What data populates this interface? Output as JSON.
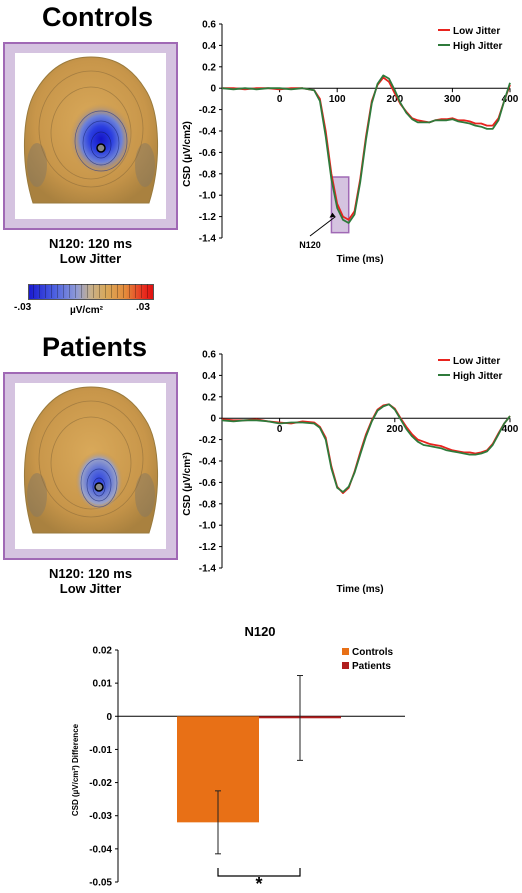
{
  "controls": {
    "heading": "Controls",
    "caption_line1": "N120: 120 ms",
    "caption_line2": "Low Jitter",
    "colorbar": {
      "min_label": "-.03",
      "max_label": ".03",
      "unit_label": "µV/cm²"
    },
    "annotation": "N120"
  },
  "patients": {
    "heading": "Patients",
    "caption_line1": "N120: 120 ms",
    "caption_line2": "Low Jitter"
  },
  "colors": {
    "low_jitter": "#e8231e",
    "high_jitter": "#2f7a3b",
    "controls_bar": "#e87016",
    "patients_bar": "#b01e1e",
    "frame": "#a069b5",
    "frame_fill": "#d5c3e0"
  },
  "chart_data": [
    {
      "type": "line",
      "xlabel": "Time (ms)",
      "ylabel": "CSD (µV/cm2)",
      "xlim": [
        -100,
        400
      ],
      "ylim": [
        -1.4,
        0.6
      ],
      "xticks": [
        0,
        100,
        200,
        300,
        400
      ],
      "yticks": [
        0.6,
        0.4,
        0.2,
        0,
        -0.2,
        -0.4,
        -0.6,
        -0.8,
        -1.0,
        -1.2,
        -1.4
      ],
      "legend_position": "top-right",
      "highlight_window": {
        "x": [
          90,
          120
        ],
        "y": [
          -1.35,
          -0.83
        ]
      },
      "series": [
        {
          "name": "Low Jitter",
          "x": [
            -100,
            -80,
            -60,
            -40,
            -20,
            0,
            20,
            40,
            60,
            70,
            80,
            90,
            100,
            110,
            120,
            130,
            140,
            150,
            160,
            170,
            180,
            190,
            200,
            210,
            220,
            230,
            240,
            250,
            260,
            270,
            280,
            290,
            300,
            310,
            320,
            330,
            340,
            350,
            360,
            370,
            380,
            390,
            400
          ],
          "y": [
            0,
            0,
            -0.01,
            0,
            0,
            -0.01,
            0,
            0,
            -0.02,
            -0.1,
            -0.4,
            -0.8,
            -1.08,
            -1.2,
            -1.23,
            -1.15,
            -0.85,
            -0.45,
            -0.12,
            0.03,
            0.1,
            0.06,
            -0.05,
            -0.15,
            -0.22,
            -0.28,
            -0.3,
            -0.31,
            -0.32,
            -0.3,
            -0.29,
            -0.29,
            -0.28,
            -0.3,
            -0.3,
            -0.31,
            -0.33,
            -0.33,
            -0.35,
            -0.35,
            -0.28,
            -0.12,
            0.03
          ]
        },
        {
          "name": "High Jitter",
          "x": [
            -100,
            -80,
            -60,
            -40,
            -20,
            0,
            20,
            40,
            60,
            70,
            80,
            90,
            100,
            110,
            120,
            130,
            140,
            150,
            160,
            170,
            180,
            190,
            200,
            210,
            220,
            230,
            240,
            250,
            260,
            270,
            280,
            290,
            300,
            310,
            320,
            330,
            340,
            350,
            360,
            370,
            380,
            390,
            400
          ],
          "y": [
            0,
            -0.01,
            0,
            -0.01,
            0,
            0,
            -0.01,
            0,
            -0.02,
            -0.12,
            -0.45,
            -0.85,
            -1.12,
            -1.23,
            -1.26,
            -1.18,
            -0.88,
            -0.48,
            -0.14,
            0.04,
            0.12,
            0.09,
            -0.02,
            -0.14,
            -0.23,
            -0.29,
            -0.32,
            -0.32,
            -0.32,
            -0.3,
            -0.3,
            -0.3,
            -0.29,
            -0.31,
            -0.32,
            -0.33,
            -0.35,
            -0.36,
            -0.38,
            -0.38,
            -0.3,
            -0.12,
            0.05
          ]
        }
      ]
    },
    {
      "type": "line",
      "xlabel": "Time (ms)",
      "ylabel": "CSD (µV/cm²)",
      "xlim": [
        -100,
        400
      ],
      "ylim": [
        -1.4,
        0.6
      ],
      "xticks": [
        0,
        200,
        400
      ],
      "yticks": [
        0.6,
        0.4,
        0.2,
        0,
        -0.2,
        -0.4,
        -0.6,
        -0.8,
        -1.0,
        -1.2,
        -1.4
      ],
      "legend_position": "top-right",
      "series": [
        {
          "name": "Low Jitter",
          "x": [
            -100,
            -80,
            -60,
            -40,
            -20,
            0,
            20,
            40,
            60,
            70,
            80,
            90,
            100,
            110,
            120,
            130,
            140,
            150,
            160,
            170,
            180,
            190,
            200,
            210,
            220,
            230,
            240,
            250,
            260,
            270,
            280,
            290,
            300,
            310,
            320,
            330,
            340,
            350,
            360,
            370,
            380,
            390,
            400
          ],
          "y": [
            -0.01,
            -0.02,
            -0.02,
            -0.01,
            -0.03,
            -0.04,
            -0.05,
            -0.03,
            -0.04,
            -0.08,
            -0.18,
            -0.45,
            -0.64,
            -0.7,
            -0.65,
            -0.5,
            -0.32,
            -0.15,
            -0.02,
            0.08,
            0.12,
            0.13,
            0.09,
            0,
            -0.08,
            -0.15,
            -0.2,
            -0.22,
            -0.24,
            -0.25,
            -0.26,
            -0.28,
            -0.3,
            -0.31,
            -0.32,
            -0.32,
            -0.33,
            -0.32,
            -0.3,
            -0.24,
            -0.14,
            -0.05,
            0.02
          ]
        },
        {
          "name": "High Jitter",
          "x": [
            -100,
            -80,
            -60,
            -40,
            -20,
            0,
            20,
            40,
            60,
            70,
            80,
            90,
            100,
            110,
            120,
            130,
            140,
            150,
            160,
            170,
            180,
            190,
            200,
            210,
            220,
            230,
            240,
            250,
            260,
            270,
            280,
            290,
            300,
            310,
            320,
            330,
            340,
            350,
            360,
            370,
            380,
            390,
            400
          ],
          "y": [
            -0.02,
            -0.03,
            -0.02,
            -0.02,
            -0.03,
            -0.05,
            -0.04,
            -0.04,
            -0.05,
            -0.09,
            -0.2,
            -0.47,
            -0.65,
            -0.69,
            -0.64,
            -0.51,
            -0.34,
            -0.17,
            -0.03,
            0.07,
            0.11,
            0.13,
            0.08,
            -0.01,
            -0.1,
            -0.17,
            -0.22,
            -0.25,
            -0.26,
            -0.27,
            -0.28,
            -0.3,
            -0.31,
            -0.32,
            -0.33,
            -0.34,
            -0.34,
            -0.33,
            -0.31,
            -0.25,
            -0.15,
            -0.05,
            0.02
          ]
        }
      ]
    },
    {
      "type": "bar",
      "title": "N120",
      "ylabel": "CSD (µV/cm²) Difference",
      "ylim": [
        -0.05,
        0.02
      ],
      "yticks": [
        0.02,
        0.01,
        0,
        -0.01,
        -0.02,
        -0.03,
        -0.04,
        -0.05
      ],
      "legend_position": "top-right",
      "significance_marker": "*",
      "series": [
        {
          "name": "Controls",
          "value": -0.032,
          "error": 0.0095
        },
        {
          "name": "Patients",
          "value": -0.0005,
          "error": 0.0128
        }
      ]
    }
  ]
}
